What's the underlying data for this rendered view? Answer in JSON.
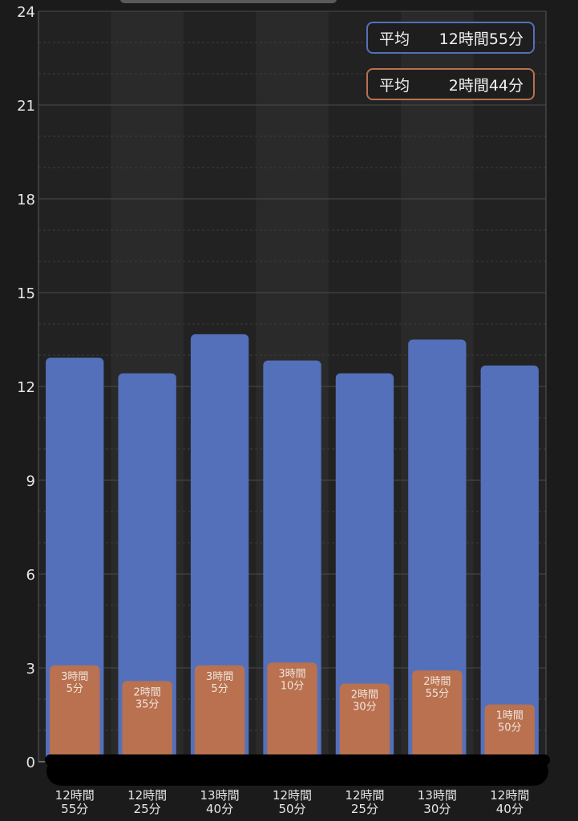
{
  "chart_data": {
    "type": "bar",
    "categories": [
      "12時間\n55分",
      "12時間\n25分",
      "13時間\n40分",
      "12時間\n50分",
      "12時間\n25分",
      "13時間\n30分",
      "12時間\n40分"
    ],
    "series": [
      {
        "color": "#5470bb",
        "values": [
          12.92,
          12.42,
          13.67,
          12.83,
          12.42,
          13.5,
          12.67
        ]
      },
      {
        "color": "#b9714f",
        "values": [
          3.08,
          2.58,
          3.08,
          3.17,
          2.5,
          2.92,
          1.83
        ],
        "data_labels": [
          "3時間\n5分",
          "2時間\n35分",
          "3時間\n5分",
          "3時間\n10分",
          "2時間\n30分",
          "2時間\n55分",
          "1時間\n50分"
        ]
      }
    ],
    "ylim": [
      0,
      24
    ],
    "yticks": [
      0,
      3,
      6,
      9,
      12,
      15,
      18,
      21,
      24
    ],
    "grid": true,
    "legend_placement": "top-right",
    "legend": [
      {
        "label": "平均",
        "value": "12時間55分",
        "color": "#5470bb"
      },
      {
        "label": "平均",
        "value": "2時間44分",
        "color": "#b9714f"
      }
    ]
  }
}
